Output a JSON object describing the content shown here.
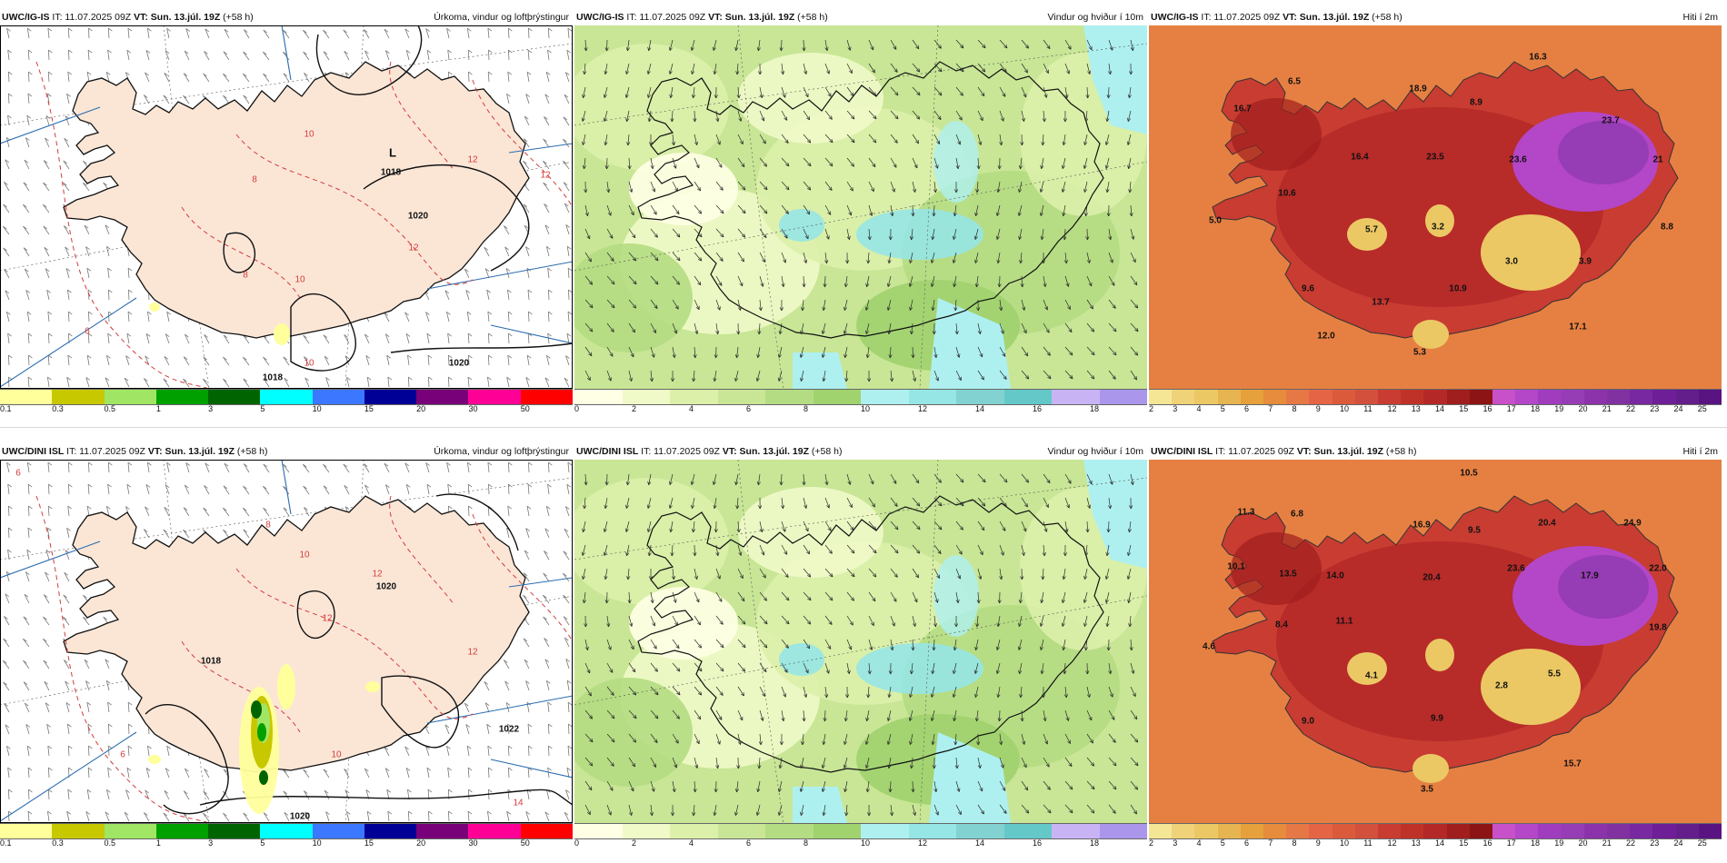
{
  "rows": [
    {
      "model": "UWC/IG-IS",
      "it_label": "IT: 11.07.2025 09Z",
      "vt_label": "VT: Sun. 13.júl. 19Z",
      "lead": "(+58 h)",
      "panels": {
        "precip": {
          "title": "Úrkoma, vindur og loftþrýstingur",
          "isobar_labels": [
            "1018",
            "1018",
            "1020",
            "1020"
          ],
          "low_label": "L",
          "temp_contour_labels": [
            "6",
            "8",
            "8",
            "10",
            "10",
            "10",
            "12",
            "12",
            "12"
          ]
        },
        "wind": {
          "title": "Vindur og hviður í 10m"
        },
        "temp": {
          "title": "Hiti í 2m",
          "values": [
            "16.3",
            "6.5",
            "16.7",
            "18.9",
            "8.9",
            "23.7",
            "16.4",
            "23.5",
            "23.6",
            "21",
            "10.6",
            "5.0",
            "5.7",
            "3.2",
            "8.8",
            "3.0",
            "3.9",
            "9.6",
            "13.7",
            "10.9",
            "12.0",
            "17.1",
            "5.3"
          ]
        }
      }
    },
    {
      "model": "UWC/DINI ISL",
      "it_label": "IT: 11.07.2025 09Z",
      "vt_label": "VT: Sun. 13.júl. 19Z",
      "lead": "(+58 h)",
      "panels": {
        "precip": {
          "title": "Úrkoma, vindur og loftþrýstingur",
          "isobar_labels": [
            "1018",
            "1020",
            "1020",
            "1022"
          ],
          "low_label": "",
          "temp_contour_labels": [
            "6",
            "6",
            "8",
            "10",
            "10",
            "12",
            "12",
            "12",
            "14"
          ]
        },
        "wind": {
          "title": "Vindur og hviður í 10m"
        },
        "temp": {
          "title": "Hiti í 2m",
          "values": [
            "10.5",
            "11.3",
            "6.8",
            "16.9",
            "9.5",
            "20.4",
            "24.9",
            "10.1",
            "13.5",
            "14.0",
            "20.4",
            "23.6",
            "17.9",
            "22.0",
            "8.4",
            "11.1",
            "19.8",
            "4.6",
            "4.1",
            "5.5",
            "2.8",
            "9.0",
            "9.9",
            "15.7",
            "3.5"
          ]
        }
      }
    }
  ],
  "legends": {
    "precip": {
      "colors": [
        "#ffff9c",
        "#c8c800",
        "#a0e664",
        "#00a000",
        "#006400",
        "#00ffff",
        "#3c78ff",
        "#000096",
        "#780078",
        "#ff0096",
        "#ff0000"
      ],
      "ticks": [
        "0.1",
        "0.3",
        "0.5",
        "1",
        "3",
        "5",
        "10",
        "15",
        "20",
        "30",
        "50"
      ]
    },
    "wind": {
      "colors": [
        "#ffffe6",
        "#f0fac8",
        "#dcf0aa",
        "#c8e696",
        "#b4dc82",
        "#a0d26e",
        "#aef0f0",
        "#96e6e6",
        "#82d2d2",
        "#64c8c8",
        "#c8b4f5",
        "#aa96eb"
      ],
      "ticks": [
        "0",
        "2",
        "4",
        "6",
        "8",
        "10",
        "12",
        "14",
        "16",
        "18"
      ]
    },
    "temp": {
      "colors": [
        "#f5e696",
        "#f0d278",
        "#ebc864",
        "#e6b450",
        "#e6a03c",
        "#e68c3c",
        "#e67846",
        "#e66446",
        "#dc5a3c",
        "#d2503c",
        "#c83c32",
        "#be3228",
        "#b42828",
        "#a01e1e",
        "#8c1414",
        "#c850c8",
        "#b446c8",
        "#a03cbe",
        "#963cb4",
        "#8c32aa",
        "#8232a0",
        "#7828a0",
        "#6e1e96",
        "#641e8c",
        "#5a1482"
      ],
      "ticks": [
        "2",
        "3",
        "4",
        "5",
        "6",
        "7",
        "8",
        "9",
        "10",
        "11",
        "12",
        "13",
        "14",
        "15",
        "16",
        "17",
        "18",
        "19",
        "20",
        "21",
        "22",
        "23",
        "24",
        "25"
      ]
    }
  }
}
